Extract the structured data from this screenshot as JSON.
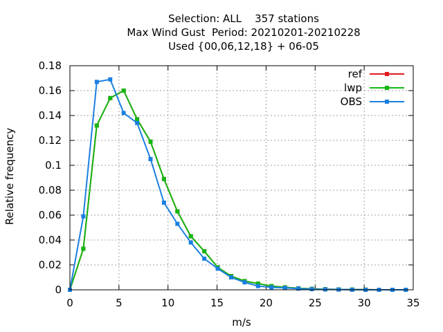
{
  "chart_data": {
    "type": "line",
    "title_lines": [
      "Selection: ALL    357 stations",
      "Max Wind Gust  Period: 20210201-20210228",
      "Used {00,06,12,18} + 06-05"
    ],
    "xlabel": "m/s",
    "ylabel": "Relative frequency",
    "xlim": [
      0,
      35
    ],
    "ylim": [
      0,
      0.18
    ],
    "x_ticks": [
      0,
      5,
      10,
      15,
      20,
      25,
      30,
      35
    ],
    "y_ticks": [
      0,
      0.02,
      0.04,
      0.06,
      0.08,
      0.1,
      0.12,
      0.14,
      0.16,
      0.18
    ],
    "y_tick_labels": [
      "0",
      "0.02",
      "0.04",
      "0.06",
      "0.08",
      "0.1",
      "0.12",
      "0.14",
      "0.16",
      "0.18"
    ],
    "grid": true,
    "legend_position": "top-right",
    "series": [
      {
        "name": "ref",
        "color": "#e41a1c",
        "x": [
          0,
          1.37,
          2.74,
          4.11,
          5.48,
          6.85,
          8.22,
          9.59,
          10.96,
          12.33,
          13.7,
          15.07,
          16.44,
          17.81,
          19.18,
          20.55,
          21.92,
          23.29,
          24.66,
          26.03,
          27.4,
          28.77,
          30.14,
          31.51,
          32.88,
          34.25
        ],
        "y": [
          0,
          0.033,
          0.132,
          0.154,
          0.16,
          0.137,
          0.119,
          0.089,
          0.063,
          0.043,
          0.031,
          0.018,
          0.011,
          0.007,
          0.005,
          0.003,
          0.002,
          0.0012,
          0.0008,
          0.0005,
          0.0003,
          0.0002,
          0.0001,
          0,
          0,
          0
        ]
      },
      {
        "name": "lwp",
        "color": "#13b813",
        "x": [
          0,
          1.37,
          2.74,
          4.11,
          5.48,
          6.85,
          8.22,
          9.59,
          10.96,
          12.33,
          13.7,
          15.07,
          16.44,
          17.81,
          19.18,
          20.55,
          21.92,
          23.29,
          24.66,
          26.03,
          27.4,
          28.77,
          30.14,
          31.51,
          32.88,
          34.25
        ],
        "y": [
          0,
          0.033,
          0.132,
          0.154,
          0.16,
          0.137,
          0.119,
          0.089,
          0.063,
          0.043,
          0.031,
          0.018,
          0.011,
          0.007,
          0.005,
          0.003,
          0.002,
          0.0012,
          0.0008,
          0.0005,
          0.0003,
          0.0002,
          0.0001,
          0,
          0,
          0
        ]
      },
      {
        "name": "OBS",
        "color": "#1a7fe0",
        "x": [
          0,
          1.37,
          2.74,
          4.11,
          5.48,
          6.85,
          8.22,
          9.59,
          10.96,
          12.33,
          13.7,
          15.07,
          16.44,
          17.81,
          19.18,
          20.55,
          21.92,
          23.29,
          24.66,
          26.03,
          27.4,
          28.77,
          30.14,
          31.51,
          32.88,
          34.25
        ],
        "y": [
          0,
          0.059,
          0.167,
          0.169,
          0.142,
          0.134,
          0.105,
          0.07,
          0.053,
          0.038,
          0.025,
          0.017,
          0.01,
          0.006,
          0.003,
          0.002,
          0.0015,
          0.001,
          0.0005,
          0.0003,
          0.0002,
          0.0001,
          0,
          0,
          0,
          0
        ]
      }
    ]
  }
}
